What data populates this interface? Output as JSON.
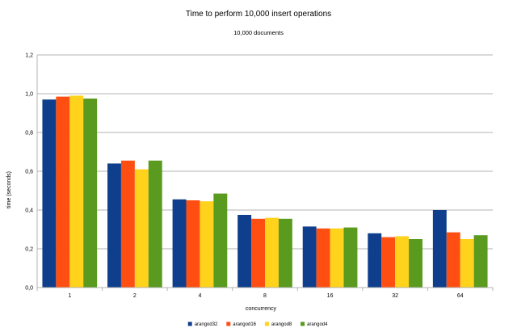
{
  "chart_data": {
    "type": "bar",
    "title": "Time to perform 10,000 insert operations",
    "subtitle": "10,000 documents",
    "xlabel": "concurrency",
    "ylabel": "time (seconds)",
    "categories": [
      "1",
      "2",
      "4",
      "8",
      "16",
      "32",
      "64"
    ],
    "ylim": [
      0,
      1.2
    ],
    "yticks": [
      "0,0",
      "0,2",
      "0,4",
      "0,6",
      "0,8",
      "1,0",
      "1,2"
    ],
    "ytick_values": [
      0,
      0.2,
      0.4,
      0.6,
      0.8,
      1.0,
      1.2
    ],
    "grid": true,
    "legend_position": "bottom",
    "series": [
      {
        "name": "arangod32",
        "color": "#0f3f8c",
        "values": [
          0.97,
          0.64,
          0.455,
          0.375,
          0.315,
          0.28,
          0.4
        ]
      },
      {
        "name": "arangod16",
        "color": "#ff4e12",
        "values": [
          0.985,
          0.655,
          0.45,
          0.355,
          0.305,
          0.26,
          0.285
        ]
      },
      {
        "name": "arangod8",
        "color": "#ffd21c",
        "values": [
          0.99,
          0.61,
          0.445,
          0.36,
          0.305,
          0.265,
          0.25
        ]
      },
      {
        "name": "arangod4",
        "color": "#5a9a1f",
        "values": [
          0.975,
          0.655,
          0.485,
          0.355,
          0.31,
          0.25,
          0.27
        ]
      }
    ]
  }
}
